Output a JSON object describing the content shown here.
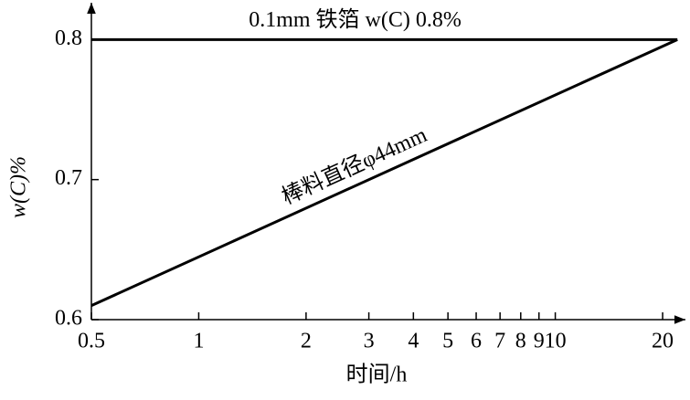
{
  "chart_data": {
    "type": "line",
    "ylabel": "w(C)%",
    "xlabel": "时间/h",
    "xscale": "log",
    "xlim": [
      0.5,
      22.5
    ],
    "ylim": [
      0.6,
      0.825
    ],
    "xticks": [
      0.5,
      1,
      2,
      3,
      4,
      5,
      6,
      7,
      8,
      9,
      10,
      20
    ],
    "yticks": [
      0.6,
      0.7,
      0.8
    ],
    "color": "#000000",
    "series": [
      {
        "name": "0.1mm 铁箔 w(C) 0.8%",
        "x": [
          0.5,
          22
        ],
        "values": [
          0.8,
          0.8
        ]
      },
      {
        "name": "棒料直径φ44mm",
        "x": [
          0.5,
          22
        ],
        "values": [
          0.61,
          0.8
        ]
      }
    ]
  }
}
